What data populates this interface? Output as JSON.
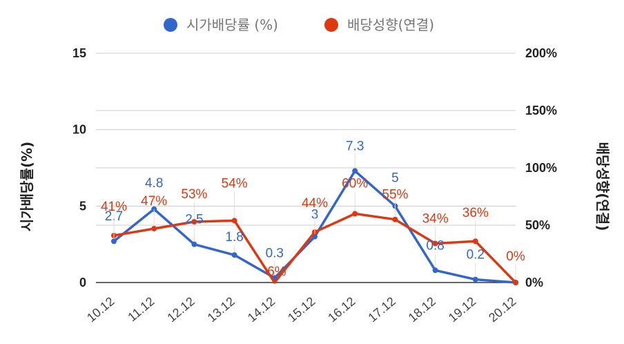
{
  "chart_data": {
    "type": "line",
    "categories": [
      "10.12",
      "11.12",
      "12.12",
      "13.12",
      "14.12",
      "15.12",
      "16.12",
      "17.12",
      "18.12",
      "19.12",
      "20.12"
    ],
    "series": [
      {
        "name": "시가배당률 (%)",
        "axis": "left",
        "color": "#3366cc",
        "values": [
          2.7,
          4.8,
          2.5,
          1.8,
          0.3,
          3.0,
          7.3,
          5.0,
          0.8,
          0.2,
          0.0
        ],
        "labels": [
          "2.7",
          "4.8",
          "2.5",
          "1.8",
          "0.3",
          "3",
          "7.3",
          "5",
          "0.8",
          "0.2",
          ""
        ]
      },
      {
        "name": "배당성향(연결)",
        "axis": "right",
        "color": "#dc3912",
        "values": [
          41,
          47,
          53,
          54,
          -6,
          44,
          60,
          55,
          34,
          36,
          0
        ],
        "labels": [
          "41%",
          "47%",
          "53%",
          "54%",
          "-6%",
          "44%",
          "60%",
          "55%",
          "34%",
          "36%",
          "0%"
        ]
      }
    ],
    "y_left": {
      "label": "시가배당률(%)",
      "ticks": [
        "0",
        "5",
        "10",
        "15"
      ],
      "range": [
        0,
        15
      ]
    },
    "y_right": {
      "label": "배당성향(연결)",
      "ticks": [
        "0%",
        "50%",
        "100%",
        "150%",
        "200%"
      ],
      "range": [
        0,
        200
      ]
    },
    "legend_position": "top",
    "grid": true
  }
}
